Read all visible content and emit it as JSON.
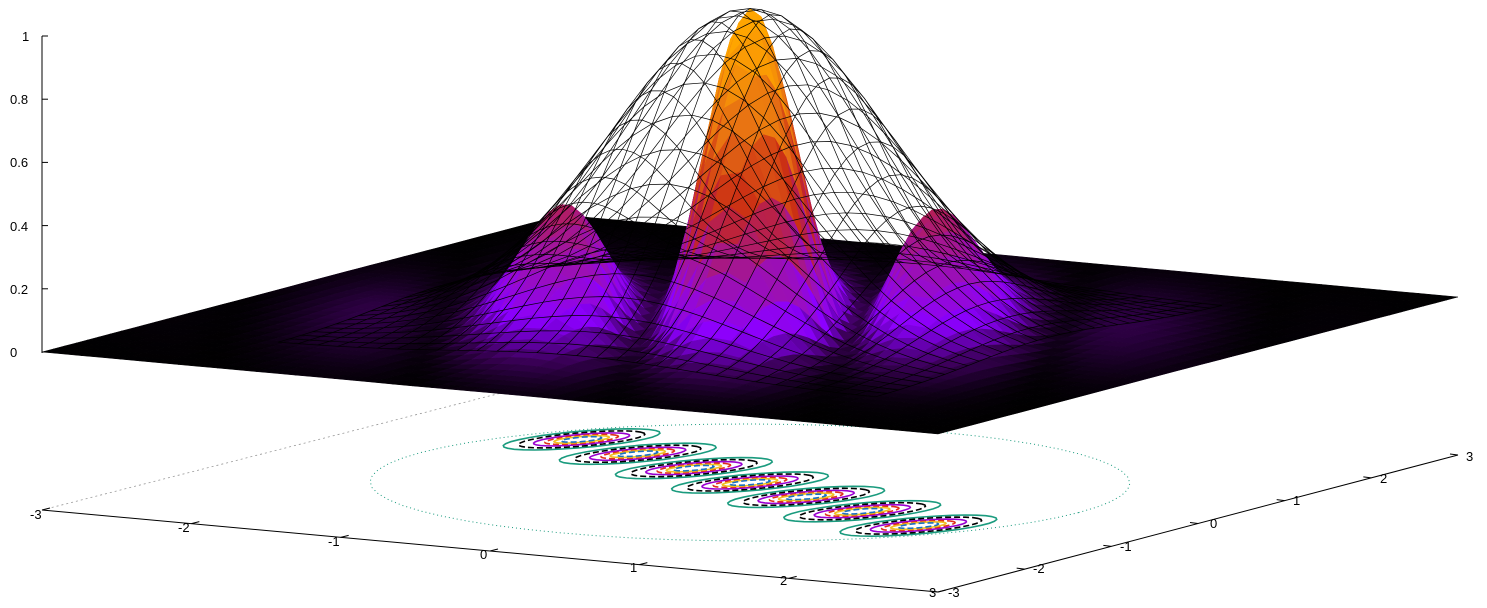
{
  "chart_data": {
    "type": "surface",
    "title": "",
    "function_note": "",
    "z_ticks": [
      "0",
      "0.2",
      "0.4",
      "0.6",
      "0.8",
      "1"
    ],
    "x_ticks": [
      "-3",
      "-2",
      "-1",
      "0",
      "1",
      "2",
      "3"
    ],
    "y_ticks": [
      "-3",
      "-2",
      "-1",
      "0",
      "1",
      "2",
      "3"
    ],
    "x_range": [
      -3,
      3
    ],
    "y_range": [
      -3,
      3
    ],
    "z_range": [
      0,
      1
    ],
    "series": [
      {
        "kind": "envelope-mesh",
        "peak": 1.0,
        "color": "#000000"
      },
      {
        "kind": "modulated-pm3d-surface",
        "ridge_peaks": [
          0.45,
          0.68,
          0.9,
          0.92,
          0.68,
          0.45
        ],
        "palette": [
          "#000000",
          "#5a0080",
          "#9a00ff",
          "#c81e1e",
          "#e0701a",
          "#ffa000"
        ]
      },
      {
        "kind": "base-contours",
        "colors": [
          "#1a9b7e",
          "#000000",
          "#9a00d0",
          "#e0301a",
          "#f0c020",
          "#1a70c0"
        ]
      }
    ]
  }
}
